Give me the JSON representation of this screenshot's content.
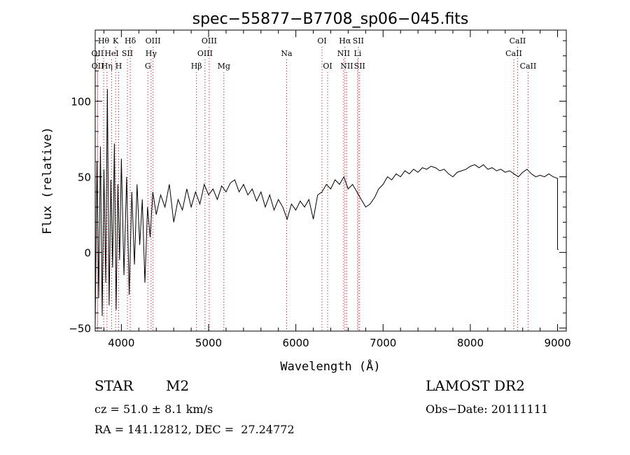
{
  "chart_data": {
    "type": "line",
    "title": "spec−55877−B7708_sp06−045.fits",
    "xlabel": "Wavelength (Å)",
    "ylabel": "Flux (relative)",
    "xlim": [
      3700,
      9100
    ],
    "ylim": [
      -52,
      147
    ],
    "xticks": [
      4000,
      5000,
      6000,
      7000,
      8000,
      9000
    ],
    "yticks": [
      -50,
      0,
      50,
      100
    ],
    "grid": false,
    "series": [
      {
        "x": [
          3700,
          3720,
          3740,
          3760,
          3780,
          3800,
          3820,
          3840,
          3860,
          3880,
          3900,
          3920,
          3940,
          3960,
          3980,
          4000,
          4030,
          4060,
          4090,
          4120,
          4150,
          4180,
          4210,
          4240,
          4270,
          4300,
          4330,
          4360,
          4400,
          4450,
          4500,
          4550,
          4600,
          4650,
          4700,
          4750,
          4800,
          4850,
          4900,
          4950,
          5000,
          5050,
          5100,
          5150,
          5200,
          5250,
          5300,
          5350,
          5400,
          5450,
          5500,
          5550,
          5600,
          5650,
          5700,
          5750,
          5800,
          5850,
          5900,
          5950,
          6000,
          6050,
          6100,
          6150,
          6200,
          6250,
          6300,
          6350,
          6400,
          6450,
          6500,
          6550,
          6600,
          6650,
          6700,
          6750,
          6800,
          6850,
          6900,
          6950,
          7000,
          7050,
          7100,
          7150,
          7200,
          7250,
          7300,
          7350,
          7400,
          7450,
          7500,
          7550,
          7600,
          7650,
          7700,
          7750,
          7800,
          7850,
          7900,
          7950,
          8000,
          8050,
          8100,
          8150,
          8200,
          8250,
          8300,
          8350,
          8400,
          8450,
          8500,
          8550,
          8600,
          8650,
          8700,
          8750,
          8800,
          8850,
          8900,
          8950,
          9000,
          9000,
          9010
        ],
        "y": [
          -48,
          60,
          -30,
          70,
          -42,
          55,
          -20,
          108,
          -35,
          48,
          -10,
          72,
          -38,
          45,
          -5,
          62,
          -15,
          50,
          -28,
          40,
          -8,
          45,
          5,
          35,
          -20,
          30,
          10,
          40,
          25,
          38,
          30,
          45,
          20,
          35,
          28,
          42,
          30,
          40,
          32,
          45,
          38,
          42,
          35,
          44,
          40,
          46,
          48,
          40,
          45,
          38,
          42,
          34,
          40,
          30,
          38,
          28,
          35,
          30,
          22,
          32,
          28,
          34,
          30,
          35,
          22,
          38,
          40,
          45,
          42,
          48,
          45,
          50,
          42,
          45,
          40,
          35,
          30,
          32,
          36,
          42,
          45,
          50,
          48,
          52,
          50,
          54,
          52,
          55,
          53,
          56,
          55,
          57,
          56,
          54,
          55,
          52,
          50,
          53,
          54,
          55,
          57,
          58,
          56,
          58,
          55,
          56,
          54,
          55,
          53,
          54,
          52,
          50,
          53,
          55,
          52,
          50,
          51,
          50,
          52,
          50,
          49,
          2,
          2
        ]
      }
    ],
    "lines": [
      {
        "label": "Hθ",
        "x": 3797,
        "row": 1
      },
      {
        "label": "OII",
        "x": 3727,
        "row": 2
      },
      {
        "label": "OII",
        "x": 3729,
        "row": 3
      },
      {
        "label": "Hη",
        "x": 3835,
        "row": 3
      },
      {
        "label": "K",
        "x": 3934,
        "row": 1
      },
      {
        "label": "HeI",
        "x": 3889,
        "row": 2
      },
      {
        "label": "H",
        "x": 3969,
        "row": 3
      },
      {
        "label": "SII",
        "x": 4069,
        "row": 2
      },
      {
        "label": "Hδ",
        "x": 4102,
        "row": 1
      },
      {
        "label": "OIII",
        "x": 4363,
        "row": 1
      },
      {
        "label": "Hγ",
        "x": 4341,
        "row": 2
      },
      {
        "label": "G",
        "x": 4304,
        "row": 3
      },
      {
        "label": "OIII",
        "x": 5007,
        "row": 1
      },
      {
        "label": "OIII",
        "x": 4959,
        "row": 2
      },
      {
        "label": "Hβ",
        "x": 4861,
        "row": 3
      },
      {
        "label": "Mg",
        "x": 5175,
        "row": 3
      },
      {
        "label": "Na",
        "x": 5894,
        "row": 2
      },
      {
        "label": "OI",
        "x": 6300,
        "row": 1
      },
      {
        "label": "OI",
        "x": 6364,
        "row": 3
      },
      {
        "label": "Hα",
        "x": 6563,
        "row": 1
      },
      {
        "label": "NII",
        "x": 6548,
        "row": 2
      },
      {
        "label": "NII",
        "x": 6584,
        "row": 3
      },
      {
        "label": "SII",
        "x": 6716,
        "row": 1
      },
      {
        "label": "Li",
        "x": 6708,
        "row": 2
      },
      {
        "label": "SII",
        "x": 6731,
        "row": 3
      },
      {
        "label": "CaII",
        "x": 8542,
        "row": 1
      },
      {
        "label": "CaII",
        "x": 8498,
        "row": 2
      },
      {
        "label": "CaII",
        "x": 8662,
        "row": 3
      }
    ]
  },
  "info": {
    "object_class": "STAR",
    "subclass": "M2",
    "survey": "LAMOST DR2",
    "cz": "cz = 51.0 ± 8.1 km/s",
    "obs_date": "Obs−Date: 20111111",
    "radec": "RA = 141.12812, DEC =  27.24772"
  }
}
